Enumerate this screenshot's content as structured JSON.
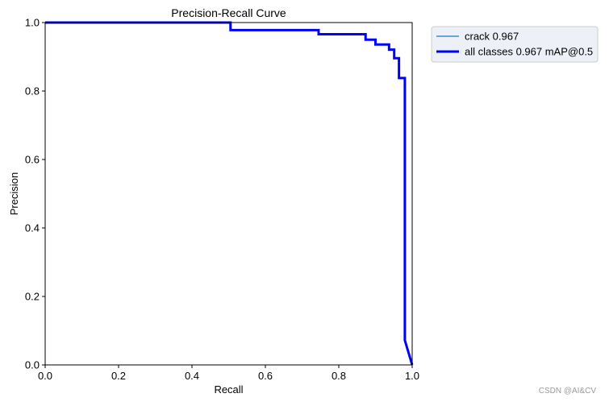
{
  "chart_data": {
    "type": "line",
    "title": "Precision-Recall Curve",
    "xlabel": "Recall",
    "ylabel": "Precision",
    "xlim": [
      0,
      1
    ],
    "ylim": [
      0,
      1
    ],
    "xticks": [
      "0.0",
      "0.2",
      "0.4",
      "0.6",
      "0.8",
      "1.0"
    ],
    "yticks": [
      "0.0",
      "0.2",
      "0.4",
      "0.6",
      "0.8",
      "1.0"
    ],
    "grid": false,
    "legend_position": "outside-top-right",
    "series": [
      {
        "name": "crack 0.967",
        "color": "#1f77b4",
        "points": [
          [
            0.0,
            1.0
          ],
          [
            0.505,
            1.0
          ],
          [
            0.505,
            0.978
          ],
          [
            0.745,
            0.978
          ],
          [
            0.745,
            0.966
          ],
          [
            0.873,
            0.966
          ],
          [
            0.873,
            0.95
          ],
          [
            0.9,
            0.95
          ],
          [
            0.9,
            0.936
          ],
          [
            0.937,
            0.936
          ],
          [
            0.937,
            0.921
          ],
          [
            0.951,
            0.921
          ],
          [
            0.951,
            0.896
          ],
          [
            0.964,
            0.896
          ],
          [
            0.964,
            0.838
          ],
          [
            0.98,
            0.838
          ],
          [
            0.98,
            0.072
          ],
          [
            1.0,
            0.0
          ]
        ]
      },
      {
        "name": "all classes 0.967 mAP@0.5",
        "color": "#0000ff",
        "points": [
          [
            0.0,
            1.0
          ],
          [
            0.505,
            1.0
          ],
          [
            0.505,
            0.978
          ],
          [
            0.745,
            0.978
          ],
          [
            0.745,
            0.966
          ],
          [
            0.873,
            0.966
          ],
          [
            0.873,
            0.95
          ],
          [
            0.9,
            0.95
          ],
          [
            0.9,
            0.936
          ],
          [
            0.937,
            0.936
          ],
          [
            0.937,
            0.921
          ],
          [
            0.951,
            0.921
          ],
          [
            0.951,
            0.896
          ],
          [
            0.964,
            0.896
          ],
          [
            0.964,
            0.838
          ],
          [
            0.98,
            0.838
          ],
          [
            0.98,
            0.072
          ],
          [
            1.0,
            0.0
          ]
        ]
      }
    ]
  },
  "watermark": "CSDN @AI&CV"
}
